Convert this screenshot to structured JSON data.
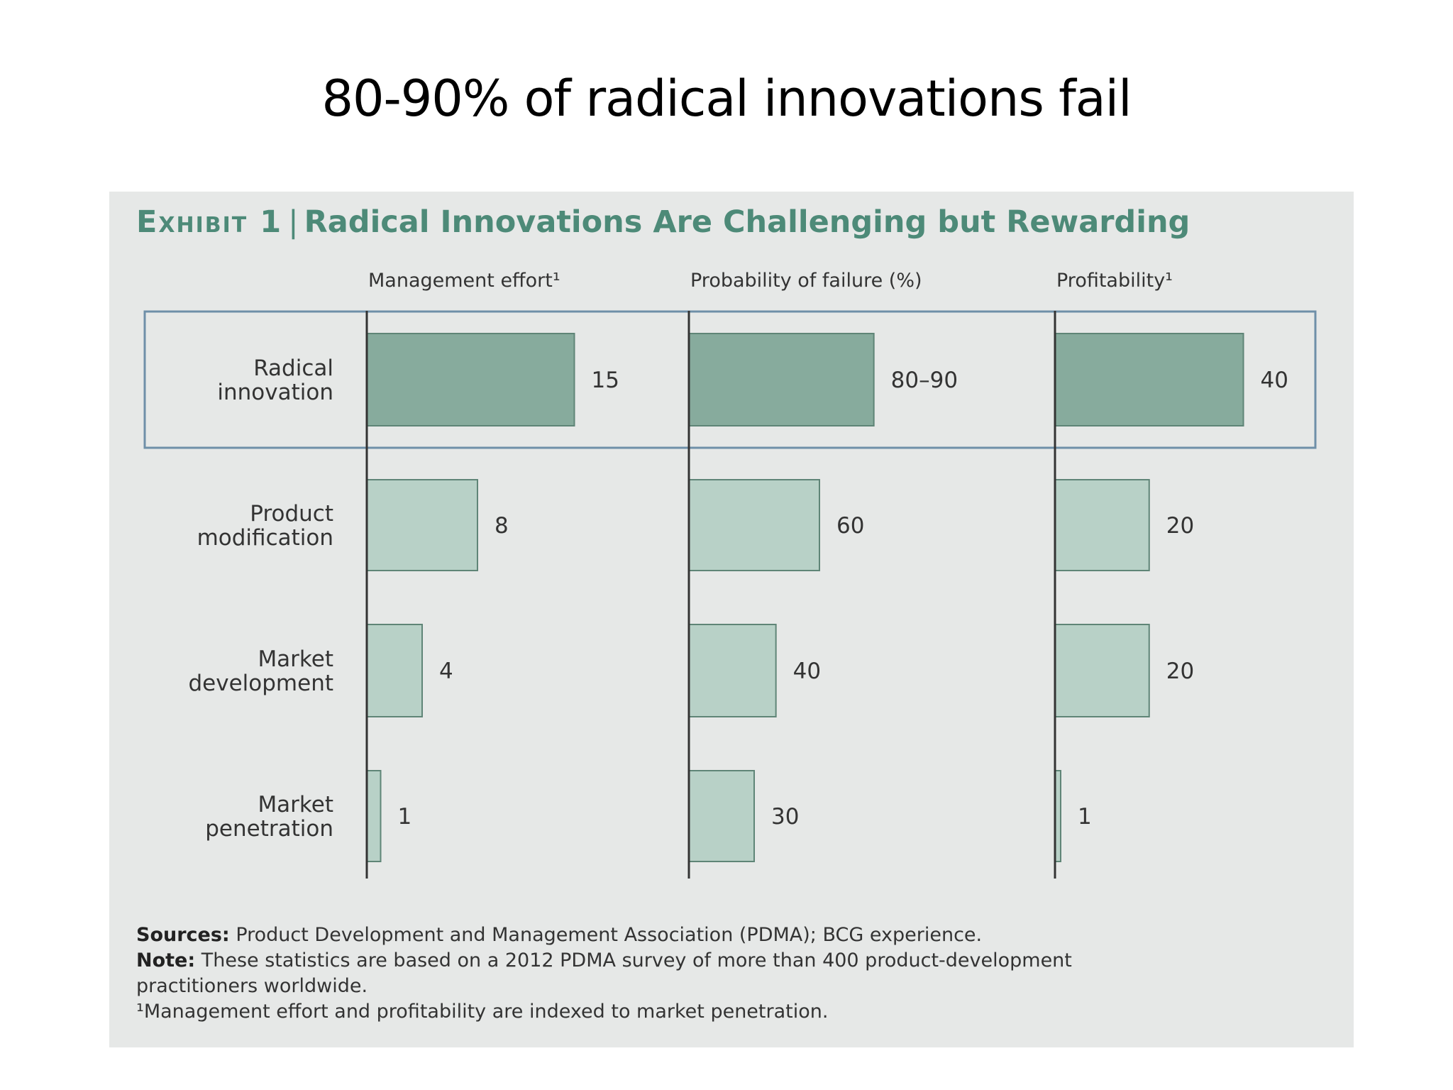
{
  "slide_title": "80-90% of radical innovations fail",
  "exhibit": {
    "prefix": "Exhibit 1",
    "separator": "|",
    "title": "Radical Innovations Are Challenging but Rewarding"
  },
  "colors": {
    "highlight_bar": "#87ab9d",
    "regular_bar": "#b8d1c7",
    "bar_stroke": "#5f8577",
    "panel_bg": "#e6e8e7",
    "highlight_frame": "#6f8fa8",
    "title_green": "#4d8a78"
  },
  "chart_data": {
    "type": "bar",
    "orientation": "horizontal",
    "categories": [
      "Radical innovation",
      "Product modification",
      "Market development",
      "Market penetration"
    ],
    "category_lines": [
      [
        "Radical",
        "innovation"
      ],
      [
        "Product",
        "modification"
      ],
      [
        "Market",
        "development"
      ],
      [
        "Market",
        "penetration"
      ]
    ],
    "highlighted_category": "Radical innovation",
    "panels": [
      {
        "title": "Management effort¹",
        "values": [
          15,
          8,
          4,
          1
        ],
        "labels": [
          "15",
          "8",
          "4",
          "1"
        ],
        "xlim": [
          0,
          20
        ]
      },
      {
        "title": "Probability of failure (%)",
        "values": [
          85,
          60,
          40,
          30
        ],
        "labels": [
          "80–90",
          "60",
          "40",
          "30"
        ],
        "xlim": [
          0,
          150
        ]
      },
      {
        "title": "Profitability¹",
        "values": [
          40,
          20,
          20,
          1
        ],
        "labels": [
          "40",
          "20",
          "20",
          "1"
        ],
        "xlim": [
          0,
          58
        ]
      }
    ]
  },
  "notes": {
    "sources_label": "Sources:",
    "sources_text": "Product Development and Management Association (PDMA); BCG experience.",
    "note_label": "Note:",
    "note_text": "These statistics are based on a 2012 PDMA survey of more than 400 product-development",
    "note_text_2": "practitioners worldwide.",
    "footnote": "¹Management effort and profitability are indexed to market penetration."
  }
}
